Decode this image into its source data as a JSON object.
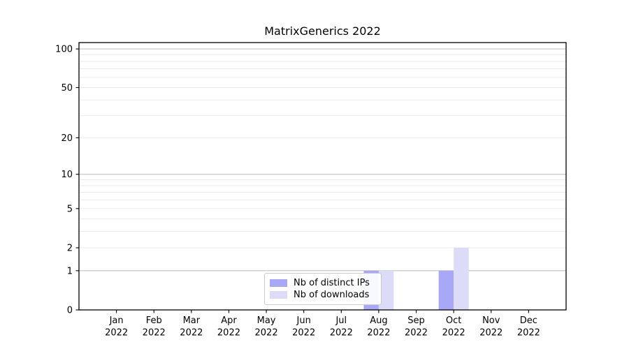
{
  "chart_data": {
    "type": "bar",
    "title": "MatrixGenerics 2022",
    "categories": [
      "Jan",
      "Feb",
      "Mar",
      "Apr",
      "May",
      "Jun",
      "Jul",
      "Aug",
      "Sep",
      "Oct",
      "Nov",
      "Dec"
    ],
    "xtick_year_line": "2022",
    "series": [
      {
        "name": "Nb of distinct IPs",
        "color": "#a8a8f7",
        "values": [
          0,
          0,
          0,
          0,
          0,
          0,
          0,
          1,
          0,
          1,
          0,
          0
        ]
      },
      {
        "name": "Nb of downloads",
        "color": "#dcdcf9",
        "values": [
          0,
          0,
          0,
          0,
          0,
          0,
          0,
          1,
          0,
          2,
          0,
          0
        ]
      }
    ],
    "yscale": "log1p",
    "ylim": [
      0,
      112
    ],
    "yticks": [
      0,
      1,
      2,
      5,
      10,
      20,
      50,
      100
    ],
    "gridlines_major": [
      1,
      10,
      100
    ],
    "gridlines_minor": [
      2,
      3,
      4,
      5,
      6,
      7,
      8,
      9,
      20,
      30,
      40,
      50,
      60,
      70,
      80,
      90
    ],
    "grid_on": true,
    "legend_position": "lower center",
    "colors": {
      "grid_major": "#c2c2c2",
      "grid_minor": "#ebebeb",
      "axis": "#000000",
      "text": "#000000",
      "legend_border": "#cbcbcb",
      "background": "#ffffff"
    }
  }
}
